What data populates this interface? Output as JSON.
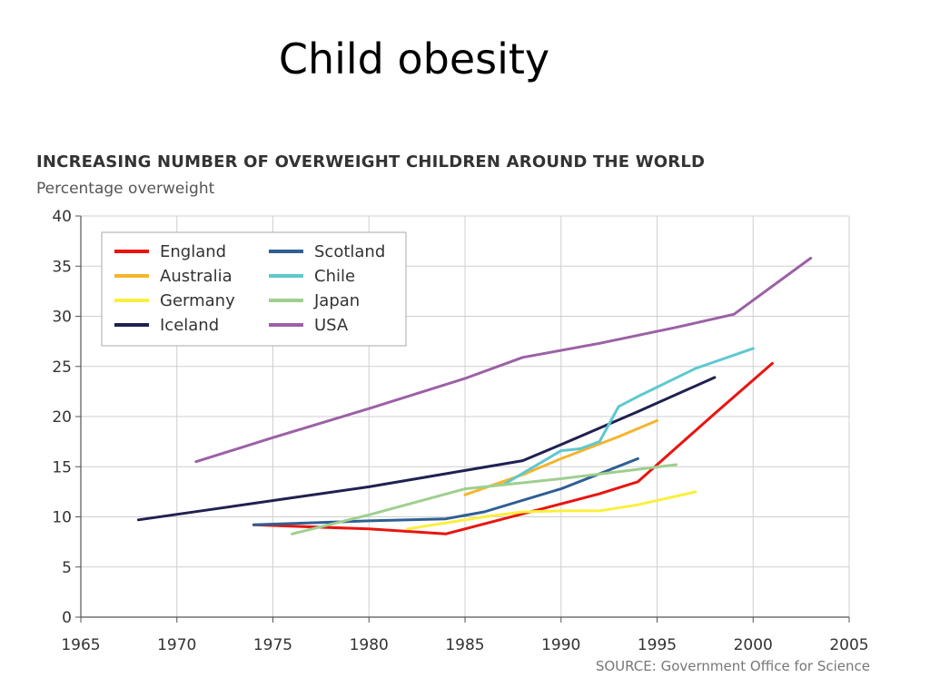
{
  "slide": {
    "title": "Child obesity"
  },
  "chart_data": {
    "type": "line",
    "title": "INCREASING NUMBER OF OVERWEIGHT CHILDREN AROUND THE WORLD",
    "subtitle": "Percentage overweight",
    "source": "SOURCE: Government Office for Science",
    "xlabel": "",
    "ylabel": "",
    "xlim": [
      1965,
      2005
    ],
    "ylim": [
      0,
      40
    ],
    "x_ticks": [
      1965,
      1970,
      1975,
      1980,
      1985,
      1990,
      1995,
      2000,
      2005
    ],
    "y_ticks": [
      0,
      5,
      10,
      15,
      20,
      25,
      30,
      35,
      40
    ],
    "grid": true,
    "legend_position": "top-left",
    "series": [
      {
        "name": "England",
        "color": "#e8150f",
        "points": [
          [
            1974,
            9.2
          ],
          [
            1980,
            8.8
          ],
          [
            1984,
            8.3
          ],
          [
            1988,
            10.3
          ],
          [
            1992,
            12.3
          ],
          [
            1994,
            13.5
          ],
          [
            1998,
            20.3
          ],
          [
            2001,
            25.3
          ]
        ]
      },
      {
        "name": "Australia",
        "color": "#f5b52c",
        "points": [
          [
            1985,
            12.2
          ],
          [
            1988,
            14.2
          ],
          [
            1990,
            15.8
          ],
          [
            1993,
            18.0
          ],
          [
            1995,
            19.6
          ]
        ]
      },
      {
        "name": "Germany",
        "color": "#fbef3d",
        "points": [
          [
            1982,
            8.8
          ],
          [
            1986,
            10.0
          ],
          [
            1988,
            10.5
          ],
          [
            1990,
            10.6
          ],
          [
            1992,
            10.6
          ],
          [
            1994,
            11.2
          ],
          [
            1997,
            12.5
          ]
        ]
      },
      {
        "name": "Iceland",
        "color": "#1f2150",
        "points": [
          [
            1968,
            9.7
          ],
          [
            1972,
            10.8
          ],
          [
            1976,
            11.9
          ],
          [
            1980,
            13.0
          ],
          [
            1984,
            14.3
          ],
          [
            1988,
            15.6
          ],
          [
            1990,
            17.2
          ],
          [
            1994,
            20.5
          ],
          [
            1998,
            23.9
          ]
        ]
      },
      {
        "name": "Scotland",
        "color": "#2f5f93",
        "points": [
          [
            1974,
            9.2
          ],
          [
            1980,
            9.6
          ],
          [
            1984,
            9.8
          ],
          [
            1986,
            10.5
          ],
          [
            1990,
            12.8
          ],
          [
            1994,
            15.8
          ]
        ]
      },
      {
        "name": "Chile",
        "color": "#5ec8d0",
        "points": [
          [
            1987,
            13.2
          ],
          [
            1990,
            16.6
          ],
          [
            1991,
            16.8
          ],
          [
            1992,
            17.5
          ],
          [
            1993,
            21.0
          ],
          [
            1994,
            22.0
          ],
          [
            1997,
            24.8
          ],
          [
            2000,
            26.8
          ]
        ]
      },
      {
        "name": "Japan",
        "color": "#9fcf8f",
        "points": [
          [
            1976,
            8.3
          ],
          [
            1980,
            10.2
          ],
          [
            1985,
            12.8
          ],
          [
            1990,
            13.8
          ],
          [
            1993,
            14.5
          ],
          [
            1996,
            15.2
          ]
        ]
      },
      {
        "name": "USA",
        "color": "#9b61a5",
        "points": [
          [
            1971,
            15.5
          ],
          [
            1975,
            17.9
          ],
          [
            1980,
            20.8
          ],
          [
            1985,
            23.8
          ],
          [
            1988,
            25.9
          ],
          [
            1992,
            27.3
          ],
          [
            1996,
            28.9
          ],
          [
            1999,
            30.2
          ],
          [
            2003,
            35.8
          ]
        ]
      }
    ]
  }
}
